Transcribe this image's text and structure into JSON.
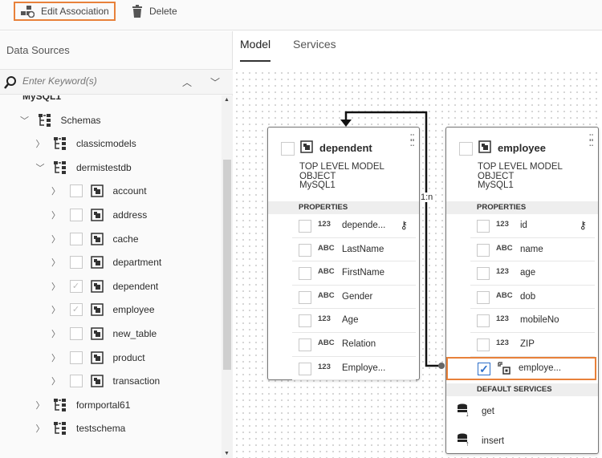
{
  "toolbar": {
    "edit_association": "Edit Association",
    "delete": "Delete"
  },
  "left": {
    "title": "Data Sources",
    "search_placeholder": "Enter Keyword(s)",
    "tree": [
      {
        "label": "MySQL1",
        "level": 0,
        "expand": "open"
      },
      {
        "label": "Schemas",
        "level": 1,
        "expand": "open",
        "icon": "schema"
      },
      {
        "label": "classicmodels",
        "level": 2,
        "expand": "closed",
        "icon": "schema"
      },
      {
        "label": "dermistestdb",
        "level": 2,
        "expand": "open",
        "icon": "schema"
      },
      {
        "label": "account",
        "level": 3,
        "expand": "closed",
        "icon": "table",
        "checkbox": true,
        "checked": false
      },
      {
        "label": "address",
        "level": 3,
        "expand": "closed",
        "icon": "table",
        "checkbox": true,
        "checked": false
      },
      {
        "label": "cache",
        "level": 3,
        "expand": "closed",
        "icon": "table",
        "checkbox": true,
        "checked": false
      },
      {
        "label": "department",
        "level": 3,
        "expand": "closed",
        "icon": "table",
        "checkbox": true,
        "checked": false
      },
      {
        "label": "dependent",
        "level": 3,
        "expand": "closed",
        "icon": "table",
        "checkbox": true,
        "checked": true
      },
      {
        "label": "employee",
        "level": 3,
        "expand": "closed",
        "icon": "table",
        "checkbox": true,
        "checked": true
      },
      {
        "label": "new_table",
        "level": 3,
        "expand": "closed",
        "icon": "table",
        "checkbox": true,
        "checked": false
      },
      {
        "label": "product",
        "level": 3,
        "expand": "closed",
        "icon": "table",
        "checkbox": true,
        "checked": false
      },
      {
        "label": "transaction",
        "level": 3,
        "expand": "closed",
        "icon": "table",
        "checkbox": true,
        "checked": false
      },
      {
        "label": "formportal61",
        "level": 2,
        "expand": "closed",
        "icon": "schema"
      },
      {
        "label": "testschema",
        "level": 2,
        "expand": "closed",
        "icon": "schema"
      }
    ]
  },
  "tabs": [
    {
      "label": "Model",
      "active": true
    },
    {
      "label": "Services",
      "active": false
    }
  ],
  "association_label": "1:n",
  "cards": [
    {
      "title": "dependent",
      "kind": "TOP LEVEL MODEL OBJECT",
      "source": "MySQL1",
      "properties_label": "PROPERTIES",
      "rows": [
        {
          "type": "123",
          "name": "depende...",
          "key": true
        },
        {
          "type": "ABC",
          "name": "LastName"
        },
        {
          "type": "ABC",
          "name": "FirstName"
        },
        {
          "type": "ABC",
          "name": "Gender"
        },
        {
          "type": "123",
          "name": "Age"
        },
        {
          "type": "ABC",
          "name": "Relation"
        },
        {
          "type": "123",
          "name": "Employe..."
        }
      ]
    },
    {
      "title": "employee",
      "kind": "TOP LEVEL MODEL OBJECT",
      "source": "MySQL1",
      "properties_label": "PROPERTIES",
      "rows": [
        {
          "type": "123",
          "name": "id",
          "key": true
        },
        {
          "type": "ABC",
          "name": "name"
        },
        {
          "type": "123",
          "name": "age"
        },
        {
          "type": "ABC",
          "name": "dob"
        },
        {
          "type": "123",
          "name": "mobileNo"
        },
        {
          "type": "123",
          "name": "ZIP"
        }
      ],
      "association_row": {
        "name": "employe...",
        "checked": true
      },
      "services_label": "DEFAULT SERVICES",
      "services": [
        {
          "name": "get",
          "icon": "db-download"
        },
        {
          "name": "insert",
          "icon": "db-upload"
        }
      ]
    }
  ],
  "colors": {
    "highlight": "#e8813a",
    "checkbox": "#2d6fc9"
  }
}
